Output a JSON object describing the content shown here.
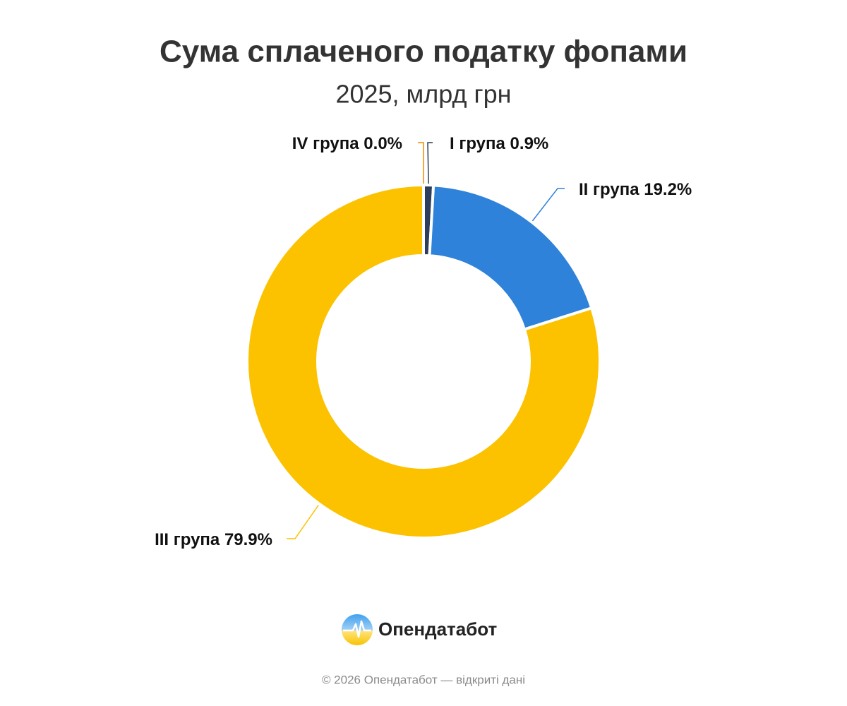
{
  "chart_data": {
    "type": "pie",
    "title": "Сума сплаченого податку фопами",
    "subtitle": "2025, млрд грн",
    "categories": [
      "I група",
      "II група",
      "III група",
      "IV група"
    ],
    "values": [
      0.9,
      19.2,
      79.9,
      0.0
    ],
    "value_labels": [
      "0.9%",
      "19.2%",
      "79.9%",
      "0.0%"
    ],
    "colors": [
      "#2c3e5c",
      "#2e82d9",
      "#fcc200",
      "#f08c00"
    ],
    "donut": true
  },
  "footer": {
    "brand": "Опендатабот",
    "copyright": "© 2026 Опендатабот — відкриті дані"
  }
}
